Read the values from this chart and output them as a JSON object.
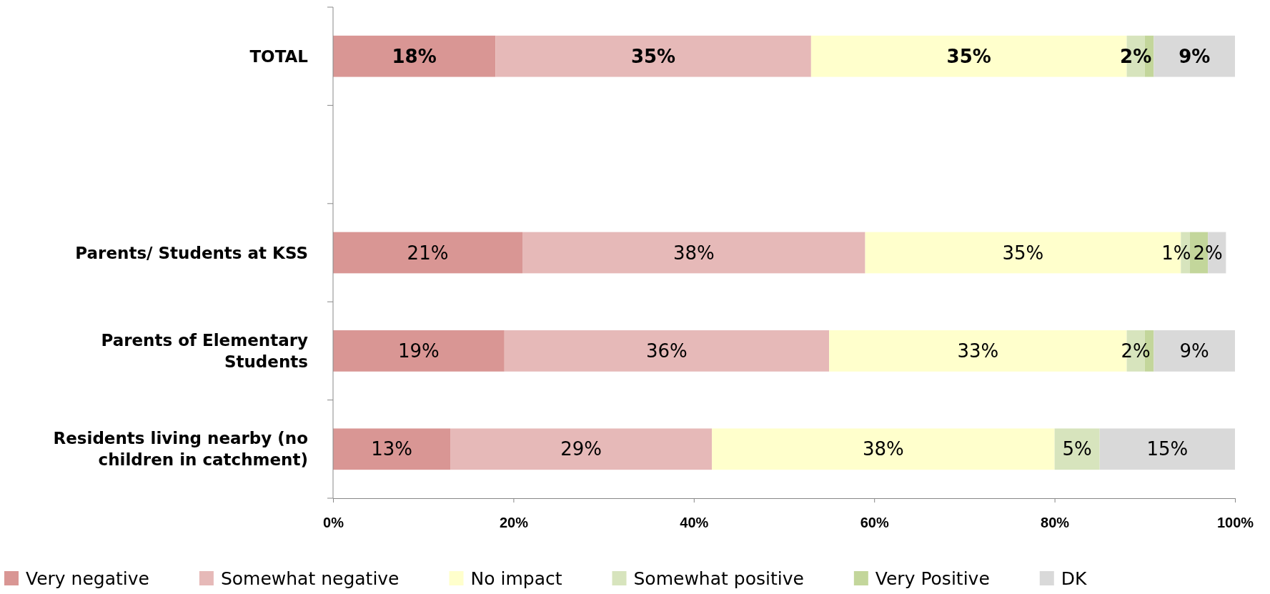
{
  "chart_data": {
    "type": "bar",
    "orientation": "horizontal",
    "stacked": true,
    "categories": [
      "TOTAL",
      null,
      "Parents/ Students at KSS",
      "Parents of Elementary Students",
      "Residents living nearby (no children in catchment)"
    ],
    "series": [
      {
        "name": "Very negative",
        "color": "#d99694",
        "values": [
          18,
          null,
          21,
          19,
          13
        ],
        "value_labels": [
          "18%",
          null,
          "21%",
          "19%",
          "13%"
        ]
      },
      {
        "name": "Somewhat negative",
        "color": "#e6b9b8",
        "values": [
          35,
          null,
          38,
          36,
          29
        ],
        "value_labels": [
          "35%",
          null,
          "38%",
          "36%",
          "29%"
        ]
      },
      {
        "name": "No impact",
        "color": "#ffffcc",
        "values": [
          35,
          null,
          35,
          33,
          38
        ],
        "value_labels": [
          "35%",
          null,
          "35%",
          "33%",
          "38%"
        ]
      },
      {
        "name": "Somewhat positive",
        "color": "#d7e4bd",
        "values": [
          2,
          null,
          1,
          2,
          5
        ],
        "value_labels": [
          "2%",
          null,
          "1%",
          "2%",
          "5%"
        ]
      },
      {
        "name": "Very Positive",
        "color": "#c3d69b",
        "values": [
          1,
          null,
          2,
          1,
          0
        ],
        "value_labels": [
          null,
          null,
          "2%",
          null,
          null
        ]
      },
      {
        "name": "DK",
        "color": "#d9d9d9",
        "values": [
          9,
          null,
          2,
          9,
          15
        ],
        "value_labels": [
          "9%",
          null,
          null,
          "9%",
          "15%"
        ]
      }
    ],
    "xlim": [
      0,
      100
    ],
    "xticks": [
      {
        "value": 0,
        "label": "0%"
      },
      {
        "value": 20,
        "label": "20%"
      },
      {
        "value": 40,
        "label": "40%"
      },
      {
        "value": 60,
        "label": "60%"
      },
      {
        "value": 80,
        "label": "80%"
      },
      {
        "value": 100,
        "label": "100%"
      }
    ],
    "grid": false,
    "legend": "bottom"
  }
}
